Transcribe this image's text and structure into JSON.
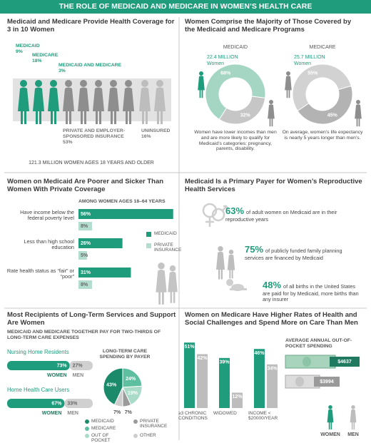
{
  "header": {
    "title": "THE ROLE OF MEDICAID AND MEDICARE IN WOMEN’S HEALTH CARE"
  },
  "coverage": {
    "title": "Medicaid and Medicare Provide Health Coverage for 3 in 10 Women",
    "groups": [
      {
        "name": "MEDICAID",
        "share": "9%"
      },
      {
        "name": "MEDICARE",
        "share": "18%"
      },
      {
        "name": "MEDICAID AND MEDICARE",
        "share": "3%"
      },
      {
        "name": "PRIVATE AND EMPLOYER-SPONSORED INSURANCE",
        "share": "53%"
      },
      {
        "name": "UNINSURED",
        "share": "16%"
      }
    ],
    "footer": "121.3 MILLION WOMEN AGES 18 YEARS AND OLDER"
  },
  "majority": {
    "title": "Women Comprise the Majority of Those Covered by the Medicaid and Medicare Programs",
    "donuts": [
      {
        "name": "MEDICAID",
        "total": "22.4 MILLION",
        "unit": "Women",
        "values": [
          68,
          32
        ],
        "value_labels": [
          "68%",
          "32%"
        ],
        "colors": [
          "#a5d6c3",
          "#c6c6c6"
        ],
        "note": "Women have lower incomes than men and are more likely to qualify for Medicaid’s categories: pregnancy, parents, disability."
      },
      {
        "name": "MEDICARE",
        "total": "25.7 MILLION",
        "unit": "Women",
        "values": [
          55,
          45
        ],
        "values_note": null,
        "value_labels": [
          "55%",
          "45%"
        ],
        "colors": [
          "#d2d2d2",
          "#b3b3b3"
        ],
        "note": "On average, women’s life expectancy is nearly 5 years longer than men’s."
      }
    ]
  },
  "poorer": {
    "title": "Women on Medicaid Are Poorer and Sicker Than Women With Private Coverage",
    "subtitle": "AMONG WOMEN AGES 18–64 YEARS",
    "categories": [
      "Have income below the federal poverty level",
      "Less than high school education",
      "Rate health status as “fair” or “poor”"
    ],
    "series": [
      {
        "name": "MEDICAID",
        "color": "#1f9c7c",
        "values": [
          56,
          26,
          31
        ],
        "value_labels": [
          "56%",
          "26%",
          "31%"
        ]
      },
      {
        "name": "PRIVATE INSURANCE",
        "color": "#b3ddcf",
        "values": [
          8,
          5,
          8
        ],
        "value_labels": [
          "8%",
          "5%",
          "8%"
        ]
      }
    ]
  },
  "reproductive": {
    "title": "Medicaid Is a Primary Payer for Women’s Reproductive Health Services",
    "stats": [
      {
        "value": "63%",
        "text": "of adult women on Medicaid are in their reproductive years"
      },
      {
        "value": "75%",
        "text": "of publicly funded family planning services are financed by Medicaid"
      },
      {
        "value": "48%",
        "text": "of all births in the United States are paid for by Medicaid, more births than any insurer"
      }
    ]
  },
  "longterm": {
    "title": "Most Recipients of Long-Term Services and Support Are Women",
    "subtitle": "MEDICAID AND MEDICARE TOGETHER PAY FOR TWO-THIRDS OF LONG-TERM CARE EXPENSES",
    "colors": [
      "#1f9c7c",
      "#d0d0d0"
    ],
    "groups": [
      {
        "name": "Nursing Home Residents",
        "labels": [
          "WOMEN",
          "MEN"
        ],
        "values": [
          73,
          27
        ],
        "value_labels": [
          "73%",
          "27%"
        ]
      },
      {
        "name": "Home Health Care Users",
        "labels": [
          "WOMEN",
          "MEN"
        ],
        "values": [
          67,
          33
        ],
        "value_labels": [
          "67%",
          "33%"
        ]
      }
    ],
    "pie": {
      "title": "LONG-TERM CARE SPENDING BY PAYER",
      "categories": [
        "MEDICAID",
        "MEDICARE",
        "OUT OF POCKET",
        "PRIVATE INSURANCE",
        "OTHER"
      ],
      "values": [
        43,
        24,
        19,
        7,
        7
      ],
      "value_labels": [
        "43%",
        "24%",
        "19%",
        "7%",
        "7%"
      ],
      "colors": [
        "#1a8a6b",
        "#5dbf9f",
        "#a9dcc8",
        "#9a9a9a",
        "#cdcdcd"
      ]
    }
  },
  "medicare": {
    "title": "Women on Medicare Have Higher Rates of Health and Social Challenges and Spend More on Care Than Men",
    "categories": [
      "≥3 CHRONIC CONDITIONS",
      "WIDOWED",
      "INCOME < $20000/YEAR"
    ],
    "series": [
      {
        "name": "WOMEN",
        "color": "#1f9c7c",
        "values": [
          51,
          39,
          46
        ],
        "value_labels": [
          "51%",
          "39%",
          "46%"
        ]
      },
      {
        "name": "MEN",
        "color": "#bdbdbd",
        "values": [
          42,
          12,
          34
        ],
        "value_labels": [
          "42%",
          "12%",
          "34%"
        ]
      }
    ],
    "spending": {
      "title": "AVERAGE ANNUAL OUT-OF-POCKET SPENDING",
      "amounts": [
        "$4637",
        "$3994"
      ]
    }
  }
}
